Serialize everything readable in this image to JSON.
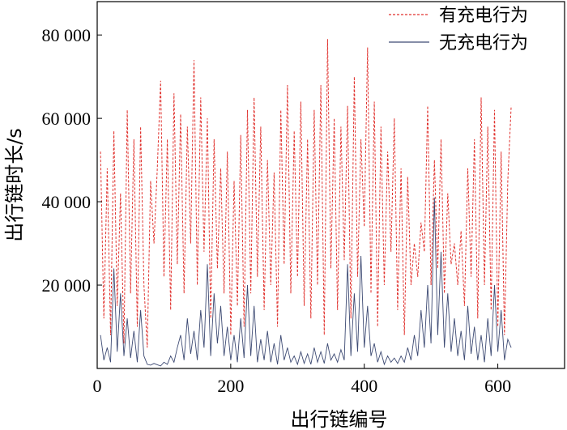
{
  "chart_data": {
    "type": "line",
    "title": "",
    "xlabel": "出行链编号",
    "ylabel": "出行链时长/s",
    "xlim": [
      0,
      700
    ],
    "ylim": [
      0,
      88000
    ],
    "x_ticks": [
      0,
      200,
      400,
      600
    ],
    "y_ticks": [
      20000,
      40000,
      60000,
      80000
    ],
    "x_tick_labels": [
      "0",
      "200",
      "400",
      "600"
    ],
    "y_tick_labels": [
      "20 000",
      "40 000",
      "60 000",
      "80 000"
    ],
    "grid": false,
    "legend_position": "top-right",
    "series": [
      {
        "name": "有充电行为",
        "color": "#e0312d",
        "style": "dashed",
        "x": [
          5,
          10,
          15,
          20,
          25,
          30,
          35,
          40,
          45,
          50,
          55,
          60,
          65,
          70,
          75,
          80,
          85,
          90,
          95,
          100,
          105,
          110,
          115,
          120,
          125,
          130,
          135,
          140,
          145,
          150,
          155,
          160,
          165,
          170,
          175,
          180,
          185,
          190,
          195,
          200,
          205,
          210,
          215,
          220,
          225,
          230,
          235,
          240,
          245,
          250,
          255,
          260,
          265,
          270,
          275,
          280,
          285,
          290,
          295,
          300,
          305,
          310,
          315,
          320,
          325,
          330,
          335,
          340,
          345,
          350,
          355,
          360,
          365,
          370,
          375,
          380,
          385,
          390,
          395,
          400,
          405,
          410,
          415,
          420,
          425,
          430,
          435,
          440,
          445,
          450,
          455,
          460,
          465,
          470,
          475,
          480,
          485,
          490,
          495,
          500,
          505,
          510,
          515,
          520,
          525,
          530,
          535,
          540,
          545,
          550,
          555,
          560,
          565,
          570,
          575,
          580,
          585,
          590,
          595,
          600,
          605,
          610,
          615,
          620
        ],
        "values": [
          52000,
          12000,
          48000,
          8000,
          57000,
          15000,
          42000,
          6000,
          62000,
          18000,
          55000,
          10000,
          58000,
          20000,
          5000,
          45000,
          30000,
          48000,
          69000,
          22000,
          55000,
          14000,
          66000,
          25000,
          61000,
          18000,
          58000,
          30000,
          74000,
          20000,
          65000,
          28000,
          60000,
          12000,
          55000,
          24000,
          48000,
          18000,
          52000,
          8000,
          45000,
          15000,
          56000,
          10000,
          62000,
          18000,
          65000,
          22000,
          58000,
          14000,
          50000,
          20000,
          47000,
          10000,
          62000,
          25000,
          68000,
          18000,
          57000,
          22000,
          64000,
          15000,
          55000,
          12000,
          62000,
          20000,
          68000,
          8000,
          79000,
          24000,
          60000,
          14000,
          58000,
          26000,
          63000,
          12000,
          70000,
          22000,
          55000,
          34000,
          77000,
          18000,
          64000,
          10000,
          58000,
          20000,
          52000,
          28000,
          60000,
          14000,
          48000,
          8000,
          46000,
          20000,
          30000,
          22000,
          35000,
          28000,
          63000,
          20000,
          50000,
          24000,
          55000,
          18000,
          42000,
          25000,
          30000,
          20000,
          33000,
          15000,
          48000,
          22000,
          55000,
          12000,
          65000,
          20000,
          58000,
          14000,
          62000,
          10000,
          52000,
          8000,
          45000,
          63000
        ]
      },
      {
        "name": "无充电行为",
        "color": "#3d4a73",
        "style": "solid",
        "x": [
          5,
          10,
          15,
          20,
          25,
          30,
          35,
          40,
          45,
          50,
          55,
          60,
          65,
          70,
          75,
          80,
          85,
          90,
          95,
          100,
          105,
          110,
          115,
          120,
          125,
          130,
          135,
          140,
          145,
          150,
          155,
          160,
          165,
          170,
          175,
          180,
          185,
          190,
          195,
          200,
          205,
          210,
          215,
          220,
          225,
          230,
          235,
          240,
          245,
          250,
          255,
          260,
          265,
          270,
          275,
          280,
          285,
          290,
          295,
          300,
          305,
          310,
          315,
          320,
          325,
          330,
          335,
          340,
          345,
          350,
          355,
          360,
          365,
          370,
          375,
          380,
          385,
          390,
          395,
          400,
          405,
          410,
          415,
          420,
          425,
          430,
          435,
          440,
          445,
          450,
          455,
          460,
          465,
          470,
          475,
          480,
          485,
          490,
          495,
          500,
          505,
          510,
          515,
          520,
          525,
          530,
          535,
          540,
          545,
          550,
          555,
          560,
          565,
          570,
          575,
          580,
          585,
          590,
          595,
          600,
          605,
          610,
          615,
          620
        ],
        "values": [
          8000,
          2000,
          5000,
          1500,
          24000,
          4000,
          18000,
          3000,
          12000,
          2500,
          9000,
          1500,
          14000,
          3000,
          1000,
          800,
          1200,
          900,
          600,
          1500,
          1000,
          3000,
          1500,
          5000,
          8000,
          2000,
          12000,
          3500,
          9000,
          2000,
          14000,
          5000,
          25000,
          3000,
          18000,
          6000,
          15000,
          3000,
          10000,
          2000,
          8000,
          1500,
          12000,
          2500,
          20000,
          3000,
          15000,
          1500,
          7000,
          2000,
          9000,
          1500,
          6000,
          1000,
          8000,
          2000,
          5000,
          1500,
          3000,
          1000,
          4000,
          1200,
          3500,
          1000,
          5000,
          1500,
          4000,
          1200,
          6000,
          2000,
          3500,
          1500,
          4500,
          2000,
          25000,
          3000,
          18000,
          4000,
          27000,
          5000,
          15000,
          3000,
          6000,
          1500,
          4000,
          1000,
          3000,
          1500,
          2500,
          1200,
          3000,
          1500,
          5000,
          2000,
          8000,
          3000,
          14000,
          5000,
          20000,
          6000,
          41000,
          8000,
          28000,
          5000,
          18000,
          4000,
          12000,
          3000,
          9000,
          2000,
          15000,
          3500,
          10000,
          2000,
          8000,
          1500,
          12000,
          3000,
          20000,
          4000,
          14000,
          2000,
          7000,
          5000
        ]
      }
    ]
  }
}
